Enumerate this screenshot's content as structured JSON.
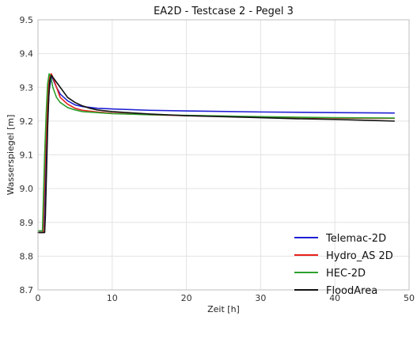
{
  "chart_data": {
    "type": "line",
    "title": "EA2D - Testcase 2 - Pegel 3",
    "xlabel": "Zeit [h]",
    "ylabel": "Wasserspiegel [m]",
    "xlim": [
      0,
      50
    ],
    "ylim": [
      8.7,
      9.5
    ],
    "xticks": [
      "0",
      "10",
      "20",
      "30",
      "40",
      "50"
    ],
    "yticks": [
      "8.7",
      "8.8",
      "8.9",
      "9.0",
      "9.1",
      "9.2",
      "9.3",
      "9.4",
      "9.5"
    ],
    "grid": true,
    "legend_position": "bottom-right",
    "series": [
      {
        "name": "Telemac-2D",
        "color": "#1f1fd4",
        "points": [
          [
            0,
            8.87
          ],
          [
            0.7,
            8.87
          ],
          [
            0.8,
            8.9
          ],
          [
            0.95,
            9.0
          ],
          [
            1.1,
            9.1
          ],
          [
            1.3,
            9.2
          ],
          [
            1.5,
            9.29
          ],
          [
            1.7,
            9.32
          ],
          [
            1.9,
            9.33
          ],
          [
            2.1,
            9.32
          ],
          [
            2.5,
            9.3
          ],
          [
            3,
            9.28
          ],
          [
            4,
            9.26
          ],
          [
            5,
            9.248
          ],
          [
            6,
            9.243
          ],
          [
            8,
            9.238
          ],
          [
            10,
            9.236
          ],
          [
            15,
            9.232
          ],
          [
            20,
            9.23
          ],
          [
            30,
            9.227
          ],
          [
            40,
            9.225
          ],
          [
            48,
            9.224
          ]
        ]
      },
      {
        "name": "Hydro_AS 2D",
        "color": "#e8201c",
        "points": [
          [
            0,
            8.87
          ],
          [
            0.7,
            8.87
          ],
          [
            0.8,
            8.95
          ],
          [
            1.0,
            9.1
          ],
          [
            1.2,
            9.22
          ],
          [
            1.4,
            9.3
          ],
          [
            1.6,
            9.335
          ],
          [
            1.8,
            9.34
          ],
          [
            2.0,
            9.33
          ],
          [
            2.5,
            9.3
          ],
          [
            3,
            9.27
          ],
          [
            4,
            9.25
          ],
          [
            5,
            9.238
          ],
          [
            6,
            9.232
          ],
          [
            8,
            9.227
          ],
          [
            10,
            9.223
          ],
          [
            15,
            9.219
          ],
          [
            20,
            9.216
          ],
          [
            30,
            9.212
          ],
          [
            40,
            9.209
          ],
          [
            48,
            9.208
          ]
        ]
      },
      {
        "name": "HEC-2D",
        "color": "#2ca02c",
        "points": [
          [
            0,
            8.875
          ],
          [
            0.6,
            8.875
          ],
          [
            0.7,
            8.95
          ],
          [
            0.9,
            9.1
          ],
          [
            1.1,
            9.22
          ],
          [
            1.3,
            9.31
          ],
          [
            1.5,
            9.34
          ],
          [
            1.7,
            9.335
          ],
          [
            2.0,
            9.3
          ],
          [
            2.5,
            9.27
          ],
          [
            3,
            9.255
          ],
          [
            4,
            9.24
          ],
          [
            5,
            9.233
          ],
          [
            6,
            9.228
          ],
          [
            8,
            9.225
          ],
          [
            10,
            9.222
          ],
          [
            15,
            9.219
          ],
          [
            20,
            9.217
          ],
          [
            30,
            9.213
          ],
          [
            40,
            9.21
          ],
          [
            48,
            9.209
          ]
        ]
      },
      {
        "name": "FloodArea",
        "color": "#111111",
        "points": [
          [
            0,
            8.87
          ],
          [
            0.9,
            8.87
          ],
          [
            1.0,
            8.92
          ],
          [
            1.15,
            9.05
          ],
          [
            1.3,
            9.18
          ],
          [
            1.45,
            9.27
          ],
          [
            1.6,
            9.32
          ],
          [
            1.8,
            9.335
          ],
          [
            2.0,
            9.33
          ],
          [
            2.5,
            9.315
          ],
          [
            3,
            9.3
          ],
          [
            4,
            9.27
          ],
          [
            5,
            9.255
          ],
          [
            6,
            9.245
          ],
          [
            7,
            9.238
          ],
          [
            8,
            9.233
          ],
          [
            10,
            9.228
          ],
          [
            15,
            9.221
          ],
          [
            20,
            9.216
          ],
          [
            25,
            9.213
          ],
          [
            30,
            9.21
          ],
          [
            35,
            9.207
          ],
          [
            40,
            9.205
          ],
          [
            45,
            9.202
          ],
          [
            48,
            9.2
          ]
        ]
      }
    ]
  }
}
